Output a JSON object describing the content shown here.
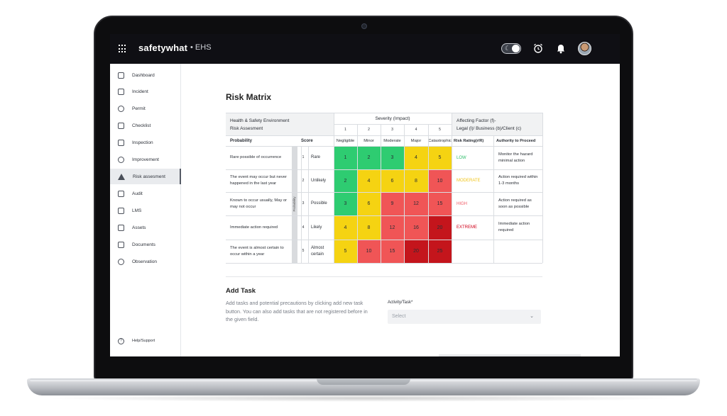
{
  "colors": {
    "green": "#2ecc71",
    "yellow": "#f5d312",
    "red": "#f05556",
    "dark_red": "#c4151c",
    "low": "#2ebd6a",
    "moderate": "#f0c419",
    "high": "#f05a66",
    "extreme": "#d0021b"
  },
  "topbar": {
    "brand": "safetywhat",
    "module": "• EHS"
  },
  "sidebar": {
    "items": [
      {
        "label": "Dashboard",
        "icon": "dashboard-icon"
      },
      {
        "label": "Incident",
        "icon": "incident-icon"
      },
      {
        "label": "Permit",
        "icon": "permit-icon"
      },
      {
        "label": "Checklist",
        "icon": "checklist-icon"
      },
      {
        "label": "Inspection",
        "icon": "inspection-icon"
      },
      {
        "label": "Improvement",
        "icon": "improvement-icon"
      },
      {
        "label": "Risk assesment",
        "icon": "warning-icon",
        "active": true
      },
      {
        "label": "Audit",
        "icon": "audit-icon"
      },
      {
        "label": "LMS",
        "icon": "graduation-cap-icon"
      },
      {
        "label": "Assets",
        "icon": "assets-icon"
      },
      {
        "label": "Documents",
        "icon": "document-icon"
      },
      {
        "label": "Observation",
        "icon": "eye-icon"
      }
    ],
    "help": "Help/Support"
  },
  "main": {
    "title": "Risk Matrix",
    "matrix": {
      "corner_line1": "Health & Safety Environment",
      "corner_line2": "Risk Assesment",
      "severity_title": "Severity (Impact)",
      "affecting_line1": "Affecting Factor (f)-",
      "affecting_line2": "Legal (l)/ Business (b)/Client (c)",
      "severity": [
        {
          "num": "1",
          "name": "Negligible"
        },
        {
          "num": "2",
          "name": "Minor"
        },
        {
          "num": "3",
          "name": "Moderate"
        },
        {
          "num": "4",
          "name": "Major"
        },
        {
          "num": "5",
          "name": "Catastrophic"
        }
      ],
      "col_probability": "Probability",
      "col_score": "Score",
      "col_rating": "Risk Rating(r/R)",
      "col_authority": "Authority to Proceed",
      "side_label": "Probability",
      "rows": [
        {
          "desc": "Rare possible of occurrence",
          "num": "1",
          "level": "Rare",
          "values": [
            "1",
            "2",
            "3",
            "4",
            "5"
          ],
          "colors": [
            "green",
            "green",
            "green",
            "yellow",
            "yellow"
          ],
          "rating": "LOW",
          "rating_color": "low",
          "authority": "Monitor the hazard minimal action"
        },
        {
          "desc": "The event may occur but never happened in the last year",
          "num": "2",
          "level": "Unlikely",
          "values": [
            "2",
            "4",
            "6",
            "8",
            "10"
          ],
          "colors": [
            "green",
            "yellow",
            "yellow",
            "yellow",
            "red"
          ],
          "rating": "MODERATE",
          "rating_color": "moderate",
          "authority": "Action required within 1-3 months"
        },
        {
          "desc": "Known to occur usually, May or may not occur",
          "num": "3",
          "level": "Possible",
          "values": [
            "3",
            "6",
            "9",
            "12",
            "15"
          ],
          "colors": [
            "green",
            "yellow",
            "red",
            "red",
            "red"
          ],
          "rating": "HIGH",
          "rating_color": "high",
          "authority": "Action required as soon as possible"
        },
        {
          "desc": "Immediate action required",
          "num": "4",
          "level": "Likely",
          "values": [
            "4",
            "8",
            "12",
            "16",
            "20"
          ],
          "colors": [
            "yellow",
            "yellow",
            "red",
            "red",
            "dark_red"
          ],
          "rating": "EXTREME",
          "rating_color": "extreme",
          "authority": "Immediate action required"
        },
        {
          "desc": "The event is almost certain to occur within a year",
          "num": "5",
          "level": "Almost certain",
          "values": [
            "5",
            "10",
            "15",
            "20",
            "25"
          ],
          "colors": [
            "yellow",
            "red",
            "red",
            "dark_red",
            "dark_red"
          ],
          "rating": "",
          "rating_color": "extreme",
          "authority": ""
        }
      ]
    },
    "add_task": {
      "title": "Add Task",
      "description": "Add tasks and potential precautions by clicking add new task button. You can also add tasks  that are not registered before in the given field.",
      "field_label": "Activity/Task*",
      "select_placeholder": "Select"
    }
  }
}
